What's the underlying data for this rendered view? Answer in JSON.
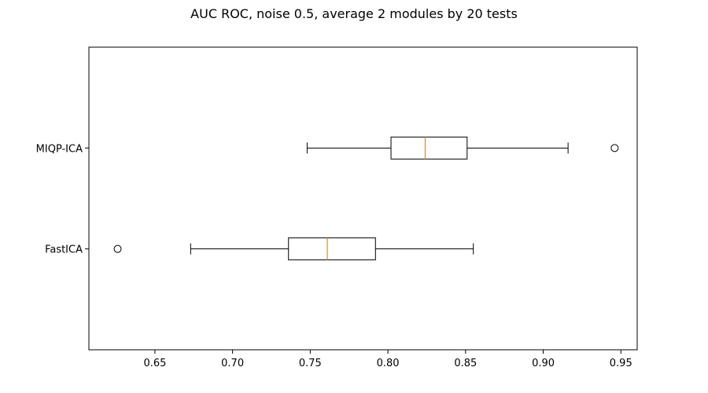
{
  "chart_data": {
    "type": "boxplot",
    "orientation": "horizontal",
    "title": "AUC ROC, noise 0.5, average 2 modules by 20 tests",
    "xlabel": "",
    "ylabel": "",
    "xlim": [
      0.6075,
      0.9605
    ],
    "xticks": [
      0.65,
      0.7,
      0.75,
      0.8,
      0.85,
      0.9,
      0.95
    ],
    "xtick_labels": [
      "0.65",
      "0.70",
      "0.75",
      "0.80",
      "0.85",
      "0.90",
      "0.95"
    ],
    "grid": false,
    "categories": [
      "FastICA",
      "MIQP-ICA"
    ],
    "series": [
      {
        "label": "FastICA",
        "whisker_low": 0.673,
        "q1": 0.736,
        "median": 0.761,
        "q3": 0.792,
        "whisker_high": 0.855,
        "outliers": [
          0.626
        ]
      },
      {
        "label": "MIQP-ICA",
        "whisker_low": 0.748,
        "q1": 0.802,
        "median": 0.824,
        "q3": 0.851,
        "whisker_high": 0.916,
        "outliers": [
          0.946
        ]
      }
    ],
    "colors": {
      "box": "#000000",
      "median": "#ff7f0e",
      "outlier": "#000000"
    }
  }
}
